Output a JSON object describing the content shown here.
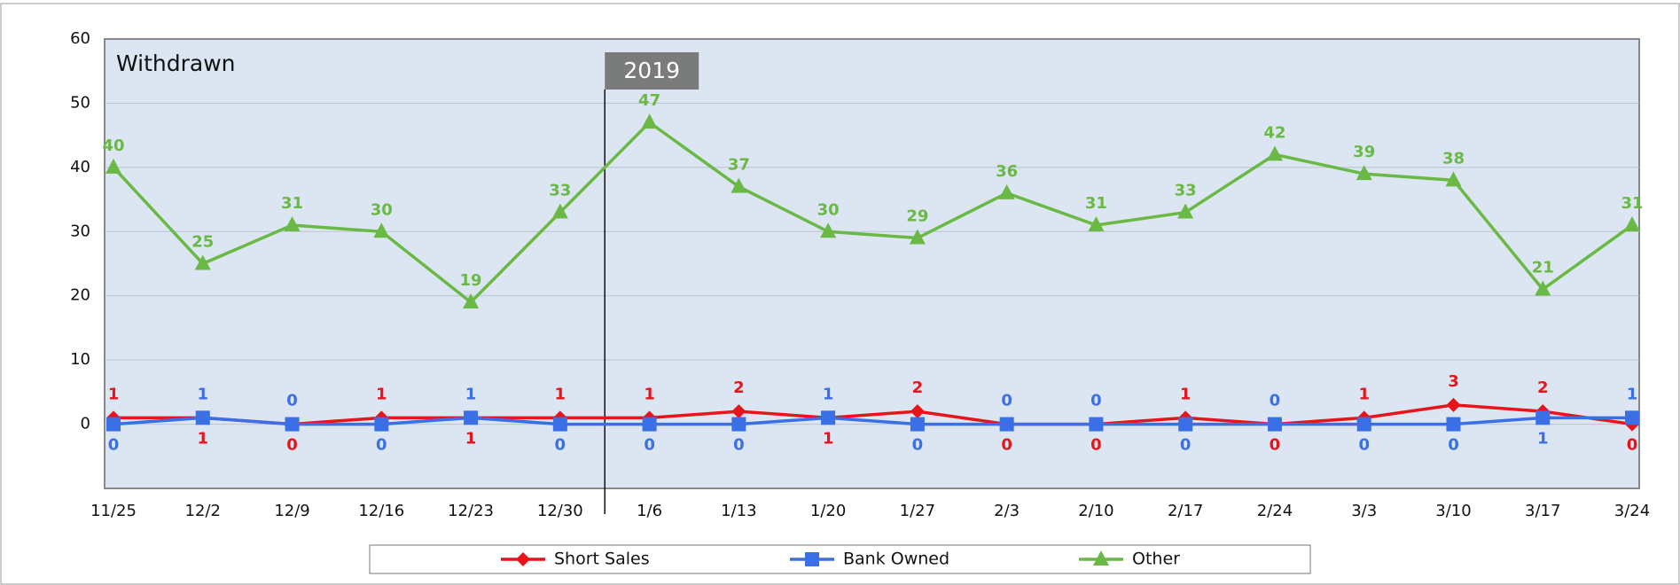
{
  "chart_data": {
    "type": "line",
    "title": "Withdrawn",
    "annotation": "2019",
    "categories": [
      "11/25",
      "12/2",
      "12/9",
      "12/16",
      "12/23",
      "12/30",
      "1/6",
      "1/13",
      "1/20",
      "1/27",
      "2/3",
      "2/10",
      "2/17",
      "2/24",
      "3/3",
      "3/10",
      "3/17",
      "3/24"
    ],
    "series": [
      {
        "name": "Short Sales",
        "color": "#e8141c",
        "marker": "diamond",
        "values": [
          1,
          1,
          0,
          1,
          1,
          1,
          1,
          2,
          1,
          2,
          0,
          0,
          1,
          0,
          1,
          3,
          2,
          0
        ]
      },
      {
        "name": "Bank Owned",
        "color": "#3b6fe6",
        "marker": "square",
        "values": [
          0,
          1,
          0,
          0,
          1,
          0,
          0,
          0,
          1,
          0,
          0,
          0,
          0,
          0,
          0,
          0,
          1,
          1
        ]
      },
      {
        "name": "Other",
        "color": "#6ab945",
        "marker": "triangle",
        "values": [
          40,
          25,
          31,
          30,
          19,
          33,
          47,
          37,
          30,
          29,
          36,
          31,
          33,
          42,
          39,
          38,
          21,
          31
        ]
      }
    ],
    "ylim": [
      -10,
      60
    ],
    "yticks": [
      0,
      10,
      20,
      30,
      40,
      50,
      60
    ],
    "grid": true,
    "legend": "bottom"
  }
}
